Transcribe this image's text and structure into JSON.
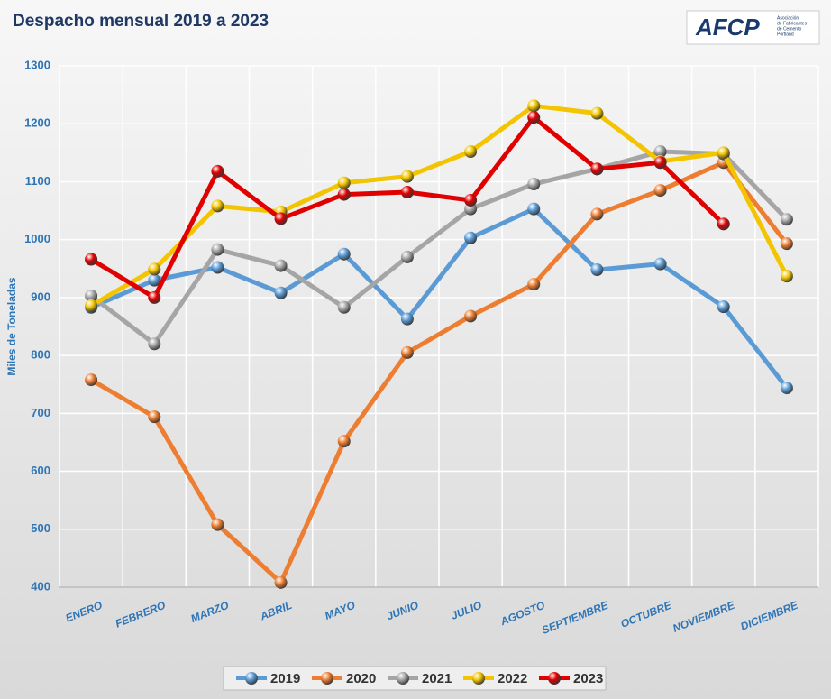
{
  "chart_data": {
    "type": "line",
    "title": "Despacho mensual 2019 a 2023",
    "y_label": "Miles de Toneladas",
    "categories": [
      "ENERO",
      "FEBRERO",
      "MARZO",
      "ABRIL",
      "MAYO",
      "JUNIO",
      "JULIO",
      "AGOSTO",
      "SEPTIEMBRE",
      "OCTUBRE",
      "NOVIEMBRE",
      "DICIEMBRE"
    ],
    "series": [
      {
        "name": "2019",
        "color": "#5b9bd5",
        "values": [
          883,
          930,
          952,
          908,
          975,
          863,
          1003,
          1053,
          948,
          958,
          884,
          744
        ]
      },
      {
        "name": "2020",
        "color": "#ed7d31",
        "values": [
          758,
          694,
          508,
          408,
          652,
          805,
          868,
          923,
          1044,
          1085,
          1133,
          993
        ]
      },
      {
        "name": "2021",
        "color": "#a5a5a5",
        "values": [
          903,
          820,
          983,
          955,
          883,
          970,
          1053,
          1096,
          1122,
          1152,
          1148,
          1035
        ]
      },
      {
        "name": "2022",
        "color": "#f2c500",
        "values": [
          886,
          949,
          1058,
          1048,
          1098,
          1109,
          1152,
          1231,
          1218,
          1135,
          1150,
          937
        ]
      },
      {
        "name": "2023",
        "color": "#e00000",
        "values": [
          966,
          900,
          1118,
          1036,
          1078,
          1082,
          1068,
          1211,
          1122,
          1133,
          1027,
          null
        ]
      }
    ],
    "ylim": [
      400,
      1300
    ],
    "yticks": [
      400,
      500,
      600,
      700,
      800,
      900,
      1000,
      1100,
      1200,
      1300
    ],
    "grid": true,
    "legend": "bottom"
  },
  "logo": {
    "text": "AFCP",
    "caption": [
      "Asociación",
      "de Fabricantes",
      "de Cemento",
      "Portland"
    ]
  }
}
